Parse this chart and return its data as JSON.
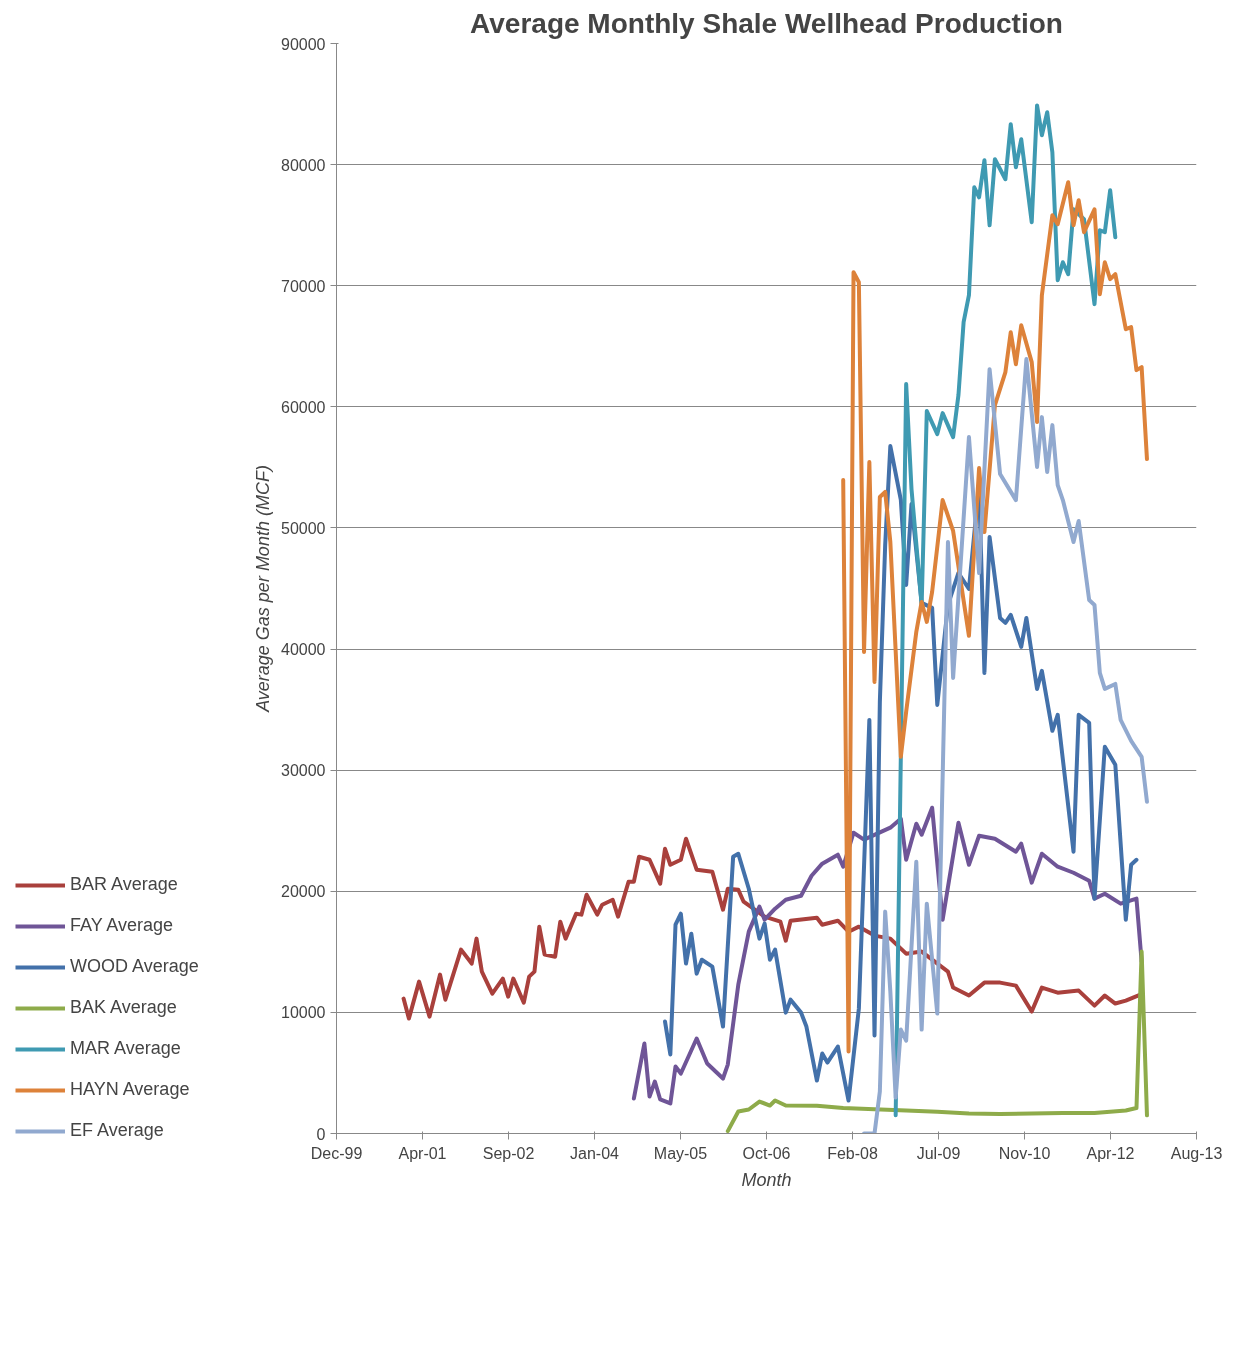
{
  "chart_data": {
    "type": "line",
    "title": "Average Monthly Shale Wellhead Production",
    "xlabel": "Month",
    "ylabel": "Average Gas per Month (MCF)",
    "xlim": [
      "1999-12-08",
      "2013-08-16"
    ],
    "xticks": [
      {
        "value": "1999-12-08",
        "label": "Dec-99"
      },
      {
        "value": "2001-04-21",
        "label": "Apr-01"
      },
      {
        "value": "2002-09-03",
        "label": "Sep-02"
      },
      {
        "value": "2004-01-16",
        "label": "Jan-04"
      },
      {
        "value": "2005-05-30",
        "label": "May-05"
      },
      {
        "value": "2006-10-12",
        "label": "Oct-06"
      },
      {
        "value": "2008-02-24",
        "label": "Feb-08"
      },
      {
        "value": "2009-07-08",
        "label": "Jul-09"
      },
      {
        "value": "2010-11-20",
        "label": "Nov-10"
      },
      {
        "value": "2012-04-03",
        "label": "Apr-12"
      },
      {
        "value": "2013-08-16",
        "label": "Aug-13"
      }
    ],
    "ylim": [
      0,
      90000
    ],
    "yticks": [
      0,
      10000,
      20000,
      30000,
      40000,
      50000,
      60000,
      70000,
      80000,
      90000
    ],
    "grid": "y",
    "legend": "left",
    "marker": "none",
    "line_style": "solid",
    "series": [
      {
        "name": "BAR Average",
        "color": "#a9403c",
        "x": [
          "2001-01",
          "2001-02",
          "2001-04",
          "2001-06",
          "2001-08",
          "2001-09",
          "2001-12",
          "2002-02",
          "2002-03",
          "2002-04",
          "2002-06",
          "2002-08",
          "2002-09",
          "2002-10",
          "2002-12",
          "2003-01",
          "2003-02",
          "2003-03",
          "2003-04",
          "2003-06",
          "2003-07",
          "2003-08",
          "2003-10",
          "2003-11",
          "2003-12",
          "2004-02",
          "2004-03",
          "2004-05",
          "2004-06",
          "2004-08",
          "2004-09",
          "2004-10",
          "2004-12",
          "2005-02",
          "2005-03",
          "2005-04",
          "2005-06",
          "2005-07",
          "2005-09",
          "2005-12",
          "2006-02",
          "2006-03",
          "2006-05",
          "2006-06",
          "2006-10",
          "2007-01",
          "2007-02",
          "2007-03",
          "2007-08",
          "2007-09",
          "2007-12",
          "2008-02",
          "2008-04",
          "2008-07",
          "2008-10",
          "2009-01",
          "2009-04",
          "2009-09",
          "2009-10",
          "2010-01",
          "2010-04",
          "2010-07",
          "2010-10",
          "2011-01",
          "2011-03",
          "2011-06",
          "2011-10",
          "2012-01",
          "2012-03",
          "2012-05",
          "2012-07",
          "2012-10"
        ],
        "values": [
          11140,
          9490,
          12540,
          9650,
          13120,
          11050,
          15180,
          14030,
          16090,
          13370,
          11550,
          12790,
          11300,
          12790,
          10800,
          12950,
          13370,
          17080,
          14770,
          14600,
          17490,
          16090,
          18150,
          18070,
          19720,
          18070,
          18890,
          19300,
          17900,
          20790,
          20790,
          22850,
          22600,
          20630,
          23510,
          22190,
          22600,
          24340,
          21780,
          21610,
          18480,
          20210,
          20130,
          19140,
          17900,
          17490,
          15920,
          17570,
          17820,
          17240,
          17570,
          16660,
          17080,
          16340,
          16090,
          14850,
          15020,
          13370,
          12050,
          11390,
          12460,
          12460,
          12210,
          10070,
          12050,
          11630,
          11800,
          10560,
          11390,
          10730,
          10970,
          11500
        ]
      },
      {
        "name": "FAY Average",
        "color": "#6f5597",
        "x": [
          "2004-09",
          "2004-11",
          "2004-12",
          "2005-01",
          "2005-02",
          "2005-04",
          "2005-05",
          "2005-06",
          "2005-09",
          "2005-11",
          "2006-02",
          "2006-03",
          "2006-05",
          "2006-07",
          "2006-09",
          "2006-10",
          "2006-12",
          "2007-02",
          "2007-05",
          "2007-07",
          "2007-09",
          "2007-12",
          "2008-01",
          "2008-03",
          "2008-05",
          "2008-10",
          "2008-12",
          "2009-01",
          "2009-03",
          "2009-04",
          "2009-06",
          "2009-08",
          "2009-11",
          "2010-01",
          "2010-03",
          "2010-06",
          "2010-10",
          "2010-11",
          "2011-01",
          "2011-03",
          "2011-06",
          "2011-09",
          "2011-12",
          "2012-01",
          "2012-03",
          "2012-06",
          "2012-09",
          "2012-10"
        ],
        "values": [
          2890,
          7430,
          3050,
          4290,
          2810,
          2480,
          5530,
          4950,
          7840,
          5780,
          4540,
          5690,
          12290,
          16670,
          18730,
          17650,
          18560,
          19300,
          19630,
          21280,
          22280,
          23020,
          22030,
          24830,
          24260,
          25250,
          25990,
          22600,
          25580,
          24670,
          26900,
          17650,
          25660,
          22190,
          24590,
          24340,
          23270,
          23930,
          20710,
          23100,
          22030,
          21530,
          20870,
          19390,
          19800,
          18980,
          19390,
          14190
        ]
      },
      {
        "name": "WOOD Average",
        "color": "#4371aa",
        "x": [
          "2005-03",
          "2005-04",
          "2005-05",
          "2005-06",
          "2005-07",
          "2005-08",
          "2005-09",
          "2005-10",
          "2005-12",
          "2006-02",
          "2006-04",
          "2006-05",
          "2006-07",
          "2006-09",
          "2006-10",
          "2006-11",
          "2006-12",
          "2007-02",
          "2007-03",
          "2007-05",
          "2007-06",
          "2007-08",
          "2007-09",
          "2007-10",
          "2007-12",
          "2008-02",
          "2008-04",
          "2008-06",
          "2008-07",
          "2008-08",
          "2008-09",
          "2008-10",
          "2008-12",
          "2009-01",
          "2009-02",
          "2009-04",
          "2009-06",
          "2009-07",
          "2009-09",
          "2009-11",
          "2010-01",
          "2010-03",
          "2010-04",
          "2010-05",
          "2010-07",
          "2010-08",
          "2010-09",
          "2010-11",
          "2010-12",
          "2011-02",
          "2011-03",
          "2011-05",
          "2011-06",
          "2011-09",
          "2011-10",
          "2011-12",
          "2012-01",
          "2012-03",
          "2012-05",
          "2012-07",
          "2012-08",
          "2012-09"
        ],
        "values": [
          9240,
          6520,
          17240,
          18150,
          14030,
          16500,
          13200,
          14350,
          13780,
          8830,
          22850,
          23100,
          20210,
          16090,
          17330,
          14350,
          15180,
          9980,
          11050,
          9980,
          8830,
          4370,
          6600,
          5860,
          7180,
          2720,
          10310,
          34150,
          8090,
          35640,
          48590,
          56760,
          52310,
          45290,
          51970,
          43810,
          43400,
          35390,
          43640,
          46280,
          44960,
          53630,
          38030,
          49250,
          42570,
          42160,
          42820,
          40180,
          42570,
          36710,
          38200,
          33250,
          34570,
          23270,
          34570,
          33910,
          19390,
          31930,
          30440,
          17650,
          22190,
          22600
        ]
      },
      {
        "name": "BAK Average",
        "color": "#8eab4a",
        "x": [
          "2006-03",
          "2006-05",
          "2006-07",
          "2006-09",
          "2006-11",
          "2006-12",
          "2007-02",
          "2007-08",
          "2008-01",
          "2008-07",
          "2009-01",
          "2009-07",
          "2010-01",
          "2010-07",
          "2011-01",
          "2011-07",
          "2012-01",
          "2012-07",
          "2012-09",
          "2012-10",
          "2012-11"
        ],
        "values": [
          200,
          1820,
          1980,
          2640,
          2310,
          2720,
          2310,
          2300,
          2100,
          2000,
          1900,
          1800,
          1650,
          1600,
          1650,
          1700,
          1700,
          1900,
          2100,
          15020,
          1500
        ]
      },
      {
        "name": "MAR Average",
        "color": "#3f9ab2",
        "x": [
          "2008-11",
          "2009-01",
          "2009-02",
          "2009-04",
          "2009-05",
          "2009-07",
          "2009-08",
          "2009-10",
          "2009-11",
          "2009-12",
          "2010-01",
          "2010-02",
          "2010-03",
          "2010-04",
          "2010-05",
          "2010-06",
          "2010-08",
          "2010-09",
          "2010-10",
          "2010-11",
          "2011-01",
          "2011-02",
          "2011-03",
          "2011-04",
          "2011-05",
          "2011-06",
          "2011-07",
          "2011-08",
          "2011-09",
          "2011-11",
          "2012-01",
          "2012-02",
          "2012-03",
          "2012-04",
          "2012-05"
        ],
        "values": [
          1500,
          61880,
          53210,
          43640,
          59650,
          57750,
          59480,
          57500,
          60970,
          66990,
          69220,
          78130,
          77300,
          80360,
          74990,
          80440,
          78790,
          83330,
          79780,
          82090,
          75240,
          84890,
          82420,
          84320,
          81020,
          70460,
          71940,
          70950,
          76310,
          75490,
          68480,
          74580,
          74420,
          77880,
          74000
        ]
      },
      {
        "name": "HAYN Average",
        "color": "#dd823a",
        "x": [
          "2008-01",
          "2008-02",
          "2008-03",
          "2008-04",
          "2008-05",
          "2008-06",
          "2008-07",
          "2008-08",
          "2008-09",
          "2008-10",
          "2008-12",
          "2009-01",
          "2009-03",
          "2009-04",
          "2009-05",
          "2009-06",
          "2009-08",
          "2009-10",
          "2010-01",
          "2010-03",
          "2010-04",
          "2010-06",
          "2010-08",
          "2010-09",
          "2010-10",
          "2010-11",
          "2011-01",
          "2011-02",
          "2011-03",
          "2011-05",
          "2011-06",
          "2011-08",
          "2011-09",
          "2011-10",
          "2011-11",
          "2012-01",
          "2012-02",
          "2012-03",
          "2012-04",
          "2012-05",
          "2012-07",
          "2012-08",
          "2012-09",
          "2012-10",
          "2012-11"
        ],
        "values": [
          53950,
          6770,
          71110,
          70290,
          39760,
          55440,
          37290,
          52550,
          52970,
          48840,
          31100,
          34820,
          41420,
          43890,
          42240,
          44720,
          52300,
          49750,
          41090,
          54940,
          49660,
          60140,
          62870,
          66160,
          63520,
          66740,
          63690,
          58740,
          69220,
          75820,
          75080,
          78540,
          74990,
          77060,
          74420,
          76310,
          69300,
          71940,
          70540,
          70950,
          66410,
          66580,
          63030,
          63280,
          55690
        ]
      },
      {
        "name": "EF Average",
        "color": "#91a9cf",
        "x": [
          "2008-05",
          "2008-07",
          "2008-08",
          "2008-09",
          "2008-10",
          "2008-11",
          "2008-12",
          "2009-01",
          "2009-03",
          "2009-04",
          "2009-05",
          "2009-07",
          "2009-09",
          "2009-10",
          "2010-01",
          "2010-03",
          "2010-05",
          "2010-07",
          "2010-10",
          "2010-12",
          "2011-02",
          "2011-03",
          "2011-04",
          "2011-05",
          "2011-06",
          "2011-07",
          "2011-09",
          "2011-10",
          "2011-12",
          "2012-01",
          "2012-02",
          "2012-03",
          "2012-05",
          "2012-06",
          "2012-08",
          "2012-10",
          "2012-11"
        ],
        "values": [
          0,
          0,
          3470,
          18320,
          11720,
          2970,
          8580,
          7670,
          22440,
          8580,
          18980,
          9900,
          48840,
          37620,
          57500,
          46280,
          63110,
          54450,
          52300,
          63940,
          55030,
          59150,
          54620,
          58490,
          53540,
          52300,
          48840,
          50570,
          44050,
          43640,
          38030,
          36710,
          37120,
          34150,
          32420,
          31100,
          27390
        ]
      }
    ]
  }
}
